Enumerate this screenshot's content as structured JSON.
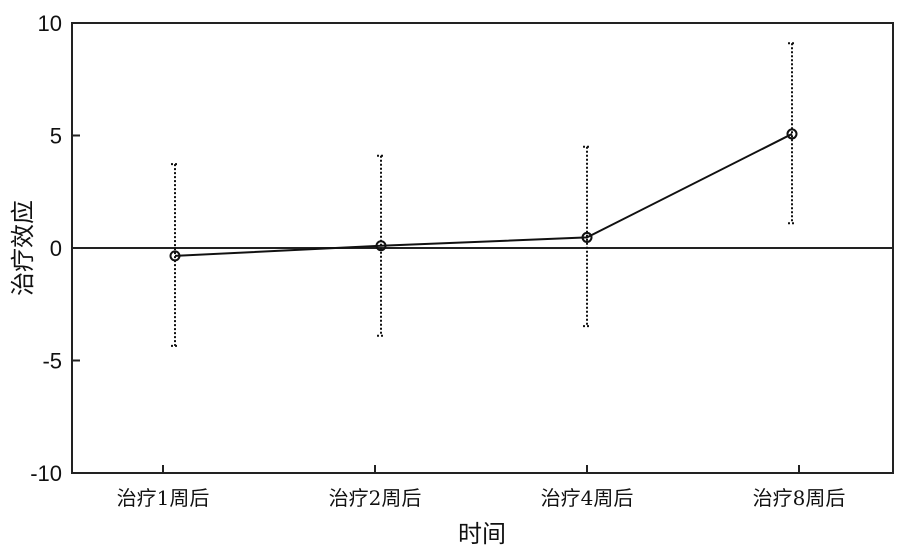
{
  "chart_data": {
    "type": "line",
    "title": "",
    "xlabel": "时间",
    "ylabel": "治疗效应",
    "categories": [
      "治疗1周后",
      "治疗2周后",
      "治疗4周后",
      "治疗8周后"
    ],
    "values": [
      -0.35,
      0.1,
      0.47,
      5.07
    ],
    "error_upper": [
      3.73,
      4.1,
      4.5,
      9.1
    ],
    "error_lower": [
      -4.35,
      -3.9,
      -3.47,
      1.1
    ],
    "ylim": [
      -10,
      10
    ],
    "yticks": [
      "10",
      "5",
      "0",
      "-5",
      "-10"
    ],
    "reference_line": 0,
    "grid": false,
    "line_color": "#111111",
    "marker": "open-circle",
    "error_bar_style": "dotted"
  }
}
